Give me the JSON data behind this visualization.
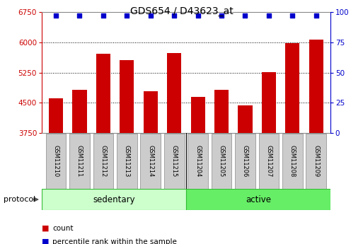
{
  "title": "GDS654 / D43623_at",
  "samples": [
    "GSM11210",
    "GSM11211",
    "GSM11212",
    "GSM11213",
    "GSM11214",
    "GSM11215",
    "GSM11204",
    "GSM11205",
    "GSM11206",
    "GSM11207",
    "GSM11208",
    "GSM11209"
  ],
  "counts": [
    4620,
    4820,
    5720,
    5560,
    4780,
    5730,
    4640,
    4820,
    4440,
    5260,
    5980,
    6070
  ],
  "percentile_ranks": [
    97,
    97,
    97,
    97,
    97,
    97,
    97,
    97,
    97,
    97,
    97,
    97
  ],
  "groups": [
    "sedentary",
    "sedentary",
    "sedentary",
    "sedentary",
    "sedentary",
    "sedentary",
    "active",
    "active",
    "active",
    "active",
    "active",
    "active"
  ],
  "group_colors": {
    "sedentary": "#ccffcc",
    "active": "#66ee66"
  },
  "bar_color": "#cc0000",
  "dot_color": "#0000cc",
  "ylim_left": [
    3750,
    6750
  ],
  "ylim_right": [
    0,
    100
  ],
  "yticks_left": [
    3750,
    4500,
    5250,
    6000,
    6750
  ],
  "yticks_right": [
    0,
    25,
    50,
    75,
    100
  ],
  "grid_values": [
    4500,
    5250,
    6000
  ],
  "legend_items": [
    {
      "label": "count",
      "color": "#cc0000"
    },
    {
      "label": "percentile rank within the sample",
      "color": "#0000cc"
    }
  ],
  "protocol_label": "protocol",
  "bar_width": 0.6,
  "n_sedentary": 6,
  "n_active": 6,
  "title_fontsize": 10,
  "tick_fontsize": 7.5,
  "sample_fontsize": 6,
  "group_fontsize": 8.5,
  "legend_fontsize": 7.5
}
